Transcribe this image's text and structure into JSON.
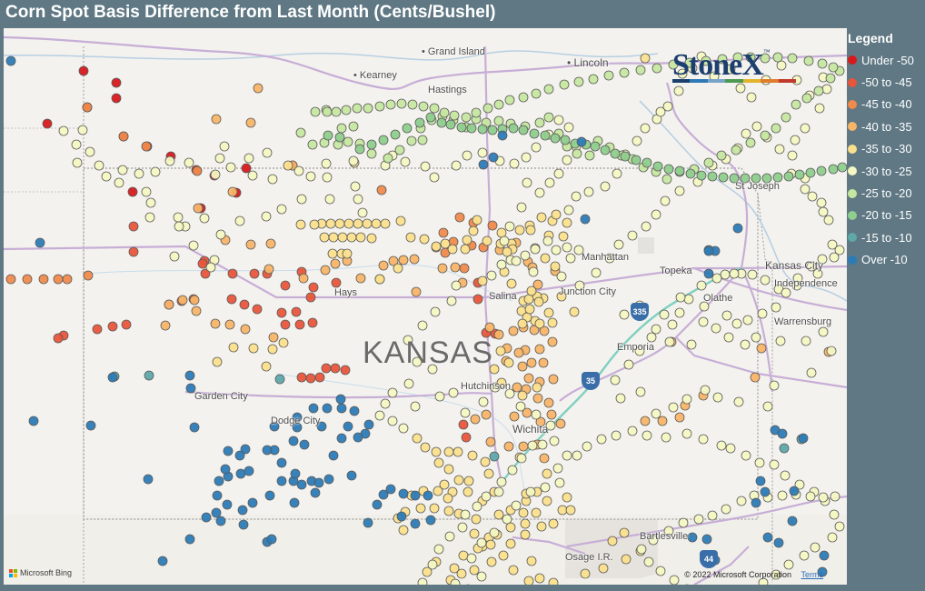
{
  "title": "Corn Spot Basis Difference from Last Month (Cents/Bushel)",
  "legend": {
    "title": "Legend",
    "items": [
      {
        "label": "Under -50",
        "color": "#d7191c"
      },
      {
        "label": "-50 to -45",
        "color": "#e8553a"
      },
      {
        "label": "-45 to -40",
        "color": "#f08a4b"
      },
      {
        "label": "-40 to -35",
        "color": "#f8b467"
      },
      {
        "label": "-35 to -30",
        "color": "#fbe08c"
      },
      {
        "label": "-30 to -25",
        "color": "#f4f7c2"
      },
      {
        "label": "-25 to -20",
        "color": "#c6e7a0"
      },
      {
        "label": "-20 to -15",
        "color": "#8fce8d"
      },
      {
        "label": "-15 to -10",
        "color": "#5ea8aa"
      },
      {
        "label": "Over -10",
        "color": "#2c7bb6"
      }
    ]
  },
  "brand": {
    "name": "StoneX",
    "tm": "™",
    "stripe_colors": [
      "#1c3f6e",
      "#2c7bb6",
      "#7aa3c8",
      "#4c9a52",
      "#e0b52c",
      "#e07b2c",
      "#c0392b"
    ]
  },
  "map": {
    "state_label": "KANSAS",
    "cities": [
      {
        "name": "Grand Island",
        "big": true
      },
      {
        "name": "Lincoln",
        "big": true
      },
      {
        "name": "Kearney",
        "big": false
      },
      {
        "name": "Hastings",
        "big": false
      },
      {
        "name": "St Joseph",
        "big": false
      },
      {
        "name": "Manhattan",
        "big": false
      },
      {
        "name": "Topeka",
        "big": false
      },
      {
        "name": "Kansas City",
        "big": true
      },
      {
        "name": "Independence",
        "big": false
      },
      {
        "name": "Olathe",
        "big": false
      },
      {
        "name": "Hays",
        "big": false
      },
      {
        "name": "Salina",
        "big": false
      },
      {
        "name": "Junction City",
        "big": false
      },
      {
        "name": "Warrensburg",
        "big": false
      },
      {
        "name": "Emporia",
        "big": false
      },
      {
        "name": "Garden City",
        "big": false
      },
      {
        "name": "Dodge City",
        "big": false
      },
      {
        "name": "Hutchinson",
        "big": false
      },
      {
        "name": "Wichita",
        "big": true
      },
      {
        "name": "Bartlesville",
        "big": false
      },
      {
        "name": "Osage I.R.",
        "big": false
      }
    ],
    "highway_shields": [
      "335",
      "35",
      "44"
    ],
    "attribution": {
      "bing": "Microsoft Bing",
      "copyright": "© 2022 Microsoft Corporation",
      "terms": "Terms"
    }
  },
  "points": {
    "rows": [
      [
        0,
        "88,47 124,60 124,77 92,87 48,105 132,119 158,130 184,141 212,156 232,162 267,154 318,151 256,181 142,180 217,198"
      ],
      [
        1,
        "221,256 219,259 182,304 196,300 209,298 222,270 252,270 276,270 290,270 328,268 310,283 341,285 366,280 251,298 265,304 279,309 306,313 322,312 338,296 310,326 326,326 340,324 103,331 120,328 135,326 66,338 60,341 328,384 338,385 348,384 355,374 365,374 376,376 143,218 143,246 522,280 522,298 531,335 541,336 506,436 509,450"
      ],
      [
        2,
        "8,276 26,276 44,276 60,276 70,276 93,272 92,87 132,119 157,130 213,157 517,214 484,225 416,178 502,208 515,239 528,241 538,217 495,235 507,264 486,247 476,241"
      ],
      [
        3,
        "234,100 272,104 280,66 318,151 214,198 252,180 182,304 197,299 210,299 178,327 233,325 249,326 266,331 297,340 212,311 244,233 272,238 294,237 292,265 330,275 354,266 365,259 378,256 393,275 414,276 418,261 429,256 440,255 452,254 454,290 483,264 497,263 505,280 546,244 564,236 585,242 577,257 607,267 582,263 588,282 535,329 545,337 561,333 572,329 584,332 595,333 604,345 590,353 574,354 581,368 571,372 594,368 554,352 567,357 553,366 578,385 590,389 605,386 565,395 575,397 588,407 600,412 576,423 562,427 591,433 603,425 613,435 531,425 519,430 536,455 556,460 572,460 587,458 595,473 706,432 725,432 744,428 750,415 770,404 735,345 827,384 908,356 834,352"
      ],
      [
        4,
        "350,215 360,215 370,215 380,215 390,215 400,215 410,215 420,215 353,230 363,230 373,230 383,230 393,230 405,231 362,248 372,248 378,248 327,216 342,216 437,212 448,230 463,232 476,240 486,237 494,243 508,243 510,233 517,223 521,211 532,234 547,237 548,225 559,237 560,243 554,246 568,222 579,217 592,208 604,212 608,205 620,214 616,229 600,228 580,222 596,253 607,262 614,295 594,297 587,295 572,300 578,298 589,301 600,313 628,312 581,289 570,311 576,318 585,322 604,324 590,325 434,264 414,276 527,278 551,268 559,281 579,309 571,325 547,355 540,375 548,390 556,368 587,395 571,404 530,477 516,470 534,490 540,510 527,520 545,535 558,549 574,545 586,533 598,520 620,516 575,520 575,512 572,533 558,567 550,580 561,596 578,608 590,605 581,586 574,557 592,548 605,545 615,530 624,530 587,510 598,490 568,472 558,530 534,560 527,570 537,587 518,596 504,600 492,607 511,617 520,623 479,478 490,466 500,466 455,451 464,461 476,466 490,485 501,497 511,510 512,498 494,510 489,517 490,531 501,534 520,540 474,528 442,532 434,539 440,552 459,528 449,514 462,509 478,509 485,502 543,557 536,568 518,556 522,572 506,580 496,594 476,587 466,598 495,621 484,630 605,610 640,600 660,594 670,564 683,555 701,575 685,584 606,640 624,640 643,640 706,33 235,367 289,372 308,346 275,352 296,353 253,351 313,151 386,148"
      ],
      [
        5,
        "250,153 274,162 296,166 290,137 270,143 243,130 238,143 233,161 204,148 183,146 167,158 149,160 127,170 113,163 105,151 95,136 80,128 66,113 87,112 81,148 131,156 157,180 162,192 161,208 192,208 221,209 200,218 193,218 188,251 209,239 232,255 228,263 239,227 260,212 289,207 306,199 328,188 359,188 390,188 395,203 387,174 356,164 338,163 325,157 355,149 385,146 420,151 428,140 442,147 464,152 474,164 498,151 510,140 527,137 546,146 562,149 575,142 586,131 600,117 611,101 622,109 630,130 620,145 611,160 601,170 590,181 576,170 570,197 557,218 551,234 558,255 574,250 585,243 599,234 608,244 620,241 624,253 633,244 622,200 630,185 644,180 662,174 675,160 684,139 697,124 706,110 719,100 723,92 731,86 743,69 747,50 758,44 768,31 782,53 800,45 811,66 823,76 839,57 856,41 873,57 887,74 902,54 906,67 898,88 882,110 871,123 868,140 882,165 890,185 900,192 908,211 912,238 901,254 889,262 874,275 853,287 838,277 824,271 812,270 804,270 794,271 785,275 768,283 754,298 744,313 736,326 718,331 733,345 757,348 770,323 784,330 798,340 816,348 828,340 855,344 883,344 902,334 911,355 889,379 848,393 841,416 809,411 786,406 772,398 752,408 737,417 718,424 701,400 679,407 673,387 688,370 700,355 713,340 683,315 700,305 727,315 745,296 771,306 796,316 807,325 819,321 835,314 850,307 861,291 873,283 896,270 914,252 920,244 902,202 882,177 867,160 854,133 840,120 829,108 817,116 808,132 795,144 780,151 764,169 744,179 728,190 718,205 707,218 692,228 677,238 667,253 652,269 634,283 614,273 583,268 564,256 548,260 537,272 498,283 493,300 475,312 461,327 445,343 455,367 472,375 446,391 428,401 420,413 414,426 428,432 440,440 453,416 480,405 495,401 508,423 528,411 541,395 557,402 569,416 586,425 602,437 606,454 593,458 582,459 570,473 560,486 548,499 545,510 531,515 521,526 508,535 505,549 491,559 479,573 472,590 461,610 483,620 497,611 526,603 515,583 526,566 540,555 554,540 564,525 580,510 596,505 612,500 610,484 620,470 631,470 642,460 658,452 674,448 692,443 708,448 729,450 752,446 770,452 790,459 800,462 817,470 832,478 848,480 860,492 876,502 892,510 904,520 914,535 920,548 912,560 893,571 881,580 864,590 850,601 836,610 818,620 803,629 785,632 766,628 752,617 738,607 723,597 710,587 702,573 715,563 732,553 748,544 765,540 780,536 795,529 812,520 826,514 841,516 857,514 872,513 888,515 902,516 915,515"
      ],
      [
        6,
        "343,92 355,90 372,110 385,108 327,115 340,128 353,126 368,128 379,125 392,127 405,138 423,143 436,134 449,124 461,123 459,110 471,101 483,97 495,101 509,109 520,100 531,104 545,102 558,105 574,108 590,104 600,98 611,116 620,130 631,138 645,140 654,124 667,131 680,140 692,144 704,153 718,158 730,166 744,158 760,155 776,148 790,140 806,134 822,126 838,118 850,110 861,98 872,84 884,77 897,69 910,55 920,47 913,43 901,39 886,36 868,33 852,32 838,33 822,32 808,32 791,34 773,36 755,38 737,40 719,44 701,46 683,49 666,52 649,56 633,59 617,62 600,67 586,72 572,76 557,79 545,84 533,88 520,93 509,98 496,96 485,93 474,88 462,86 450,84 438,83 426,84 414,86 401,88 389,88 377,90 366,92 356,92"
      ],
      [
        7,
        "357,118 370,120 392,133 405,128 418,123 431,117 444,110 458,104 470,98 482,104 492,106 504,109 515,110 527,111 538,112 549,111 561,110 572,112 584,116 596,118 607,121 618,123 629,127 641,128 651,130 662,134 673,138 684,141 696,145 708,148 720,152 732,155 744,157 756,160 768,162 780,163 792,164 804,165 816,165 828,165 840,165 852,164 864,163 876,161 888,159 900,157 913,155 923,153"
      ],
      [
        8,
        "122,383 160,382 304,386 540,471 776,244 859,462 878,452"
      ],
      [
        9,
        "8,36 40,236 33,432 96,437 120,384 159,496 205,382 206,396 235,514 234,533 223,538 237,498 247,493 261,490 270,487 246,524 263,530 274,522 293,514 306,498 306,478 319,498 321,490 319,454 328,502 339,498 347,500 358,496 383,492 363,470 372,451 379,438 372,418 371,408 386,421 398,446 390,450 402,436 411,524 426,507 440,512 453,514 467,514 438,537 470,541 453,545 418,513 401,544 350,438 341,418 356,418 331,458 323,428 298,438 298,464 290,464 266,463 260,470 247,465 244,485 210,439 205,562 175,586 290,565 295,562 264,546 239,542 320,522 323,439 343,511 549,118 539,142 528,150 636,125 640,210 783,245 776,245 808,220 776,270 833,498 838,510 828,522 870,509 868,542 853,566 841,560 758,560 774,562 783,585 901,598 903,580 849,442 857,446 880,451"
      ]
    ]
  }
}
